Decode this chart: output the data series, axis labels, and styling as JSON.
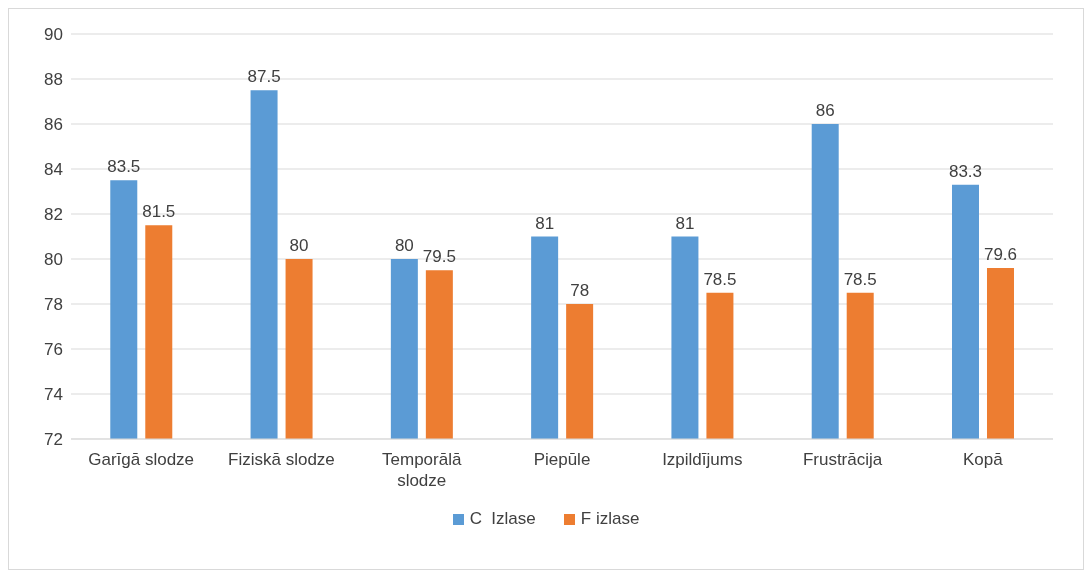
{
  "chart_data": {
    "type": "bar",
    "categories": [
      "Garīgā slodze",
      "Fiziskā slodze",
      "Temporālā slodze",
      "Piepūle",
      "Izpildījums",
      "Frustrācija",
      "Kopā"
    ],
    "series": [
      {
        "name": "C  Izlase",
        "color": "#5b9bd5",
        "values": [
          83.5,
          87.5,
          80,
          81,
          81,
          86,
          83.3
        ]
      },
      {
        "name": "F izlase",
        "color": "#ed7d31",
        "values": [
          81.5,
          80,
          79.5,
          78,
          78.5,
          78.5,
          79.6
        ]
      }
    ],
    "ylim": [
      72,
      90
    ],
    "yticks": [
      72,
      74,
      76,
      78,
      80,
      82,
      84,
      86,
      88,
      90
    ],
    "grid": "y",
    "legend": "bottom",
    "data_labels": true
  }
}
